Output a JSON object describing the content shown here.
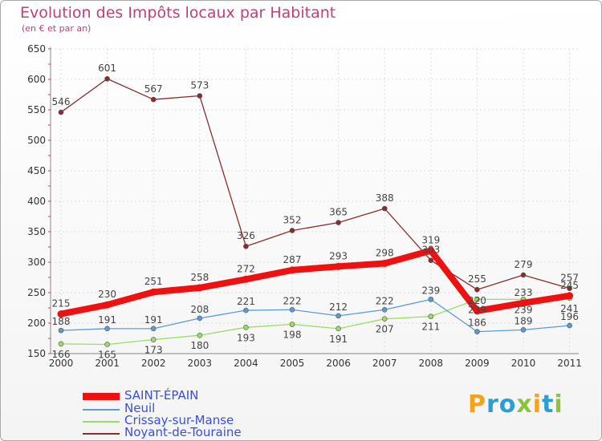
{
  "chart_data": {
    "type": "line",
    "title": "Evolution des Impôts locaux par Habitant",
    "subtitle": "(en € et par an)",
    "categories": [
      "2000",
      "2001",
      "2002",
      "2003",
      "2004",
      "2005",
      "2006",
      "2007",
      "2008",
      "2009",
      "2010",
      "2011"
    ],
    "ylim": [
      150,
      650
    ],
    "yticks": [
      150,
      200,
      250,
      300,
      350,
      400,
      450,
      500,
      550,
      600,
      650
    ],
    "series": [
      {
        "name": "Noyant-de-Touraine",
        "color": "#8b2c2c",
        "values": [
          546,
          601,
          567,
          573,
          326,
          352,
          365,
          388,
          303,
          255,
          279,
          257
        ],
        "labels": [
          "546",
          "601",
          "567",
          "573",
          "326",
          "352",
          "365",
          "388",
          "303",
          "255",
          "279",
          "257"
        ]
      },
      {
        "name": "Crissay-sur-Manse",
        "color": "#99dd66",
        "values": [
          166,
          165,
          173,
          180,
          193,
          198,
          191,
          207,
          211,
          239,
          239,
          241
        ],
        "labels": [
          "166",
          "165",
          "173",
          "180",
          "193",
          "198",
          "191",
          "207",
          "211",
          "239",
          "239",
          "241"
        ]
      },
      {
        "name": "Neuil",
        "color": "#5b9bd5",
        "values": [
          188,
          191,
          191,
          208,
          221,
          222,
          212,
          222,
          239,
          186,
          189,
          196
        ],
        "labels": [
          "188",
          "191",
          "191",
          "208",
          "221",
          "222",
          "212",
          "222",
          "239",
          "186",
          "189",
          "196"
        ]
      },
      {
        "name": "SAINT-ÉPAIN",
        "color": "#ee1111",
        "values": [
          215,
          230,
          251,
          258,
          272,
          287,
          293,
          298,
          319,
          220,
          233,
          245
        ],
        "labels": [
          "215",
          "230",
          "251",
          "258",
          "272",
          "287",
          "293",
          "298",
          "319",
          "220",
          "233",
          "245"
        ]
      }
    ]
  },
  "legend": {
    "items": [
      {
        "name": "SAINT-ÉPAIN",
        "color": "#ee1111"
      },
      {
        "name": "Neuil",
        "color": "#5b9bd5"
      },
      {
        "name": "Crissay-sur-Manse",
        "color": "#99dd66"
      },
      {
        "name": "Noyant-de-Touraine",
        "color": "#8b2c2c"
      }
    ]
  },
  "brand": {
    "letters": [
      "P",
      "r",
      "o",
      "x",
      "i",
      "t",
      "i"
    ],
    "colors": [
      "#f7a21b",
      "#2a9fd6",
      "#2a9fd6",
      "#8ac43f",
      "#f7a21b",
      "#2a9fd6",
      "#8ac43f"
    ]
  }
}
